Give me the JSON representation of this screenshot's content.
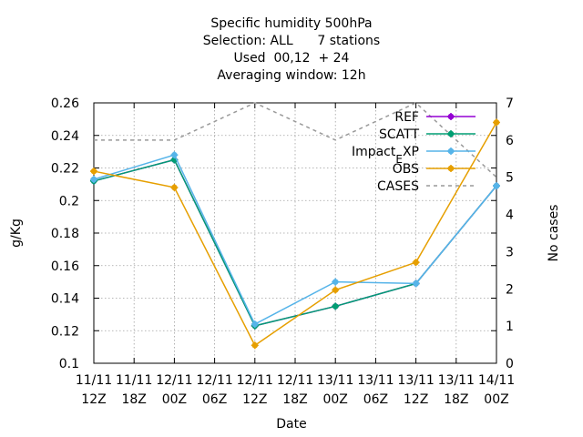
{
  "chart_data": {
    "type": "line",
    "title_lines": [
      "Specific humidity 500hPa",
      "Selection: ALL      7 stations",
      "Used  00,12  + 24",
      "Averaging window: 12h"
    ],
    "xlabel": "Date",
    "ylabel": "g/Kg",
    "y2label": "No cases",
    "x_ticks": [
      {
        "line1": "11/11",
        "line2": "12Z"
      },
      {
        "line1": "11/11",
        "line2": "18Z"
      },
      {
        "line1": "12/11",
        "line2": "00Z"
      },
      {
        "line1": "12/11",
        "line2": "06Z"
      },
      {
        "line1": "12/11",
        "line2": "12Z"
      },
      {
        "line1": "12/11",
        "line2": "18Z"
      },
      {
        "line1": "13/11",
        "line2": "00Z"
      },
      {
        "line1": "13/11",
        "line2": "06Z"
      },
      {
        "line1": "13/11",
        "line2": "12Z"
      },
      {
        "line1": "13/11",
        "line2": "18Z"
      },
      {
        "line1": "14/11",
        "line2": "00Z"
      }
    ],
    "ylim": [
      0.1,
      0.26
    ],
    "y_ticks": [
      "0.1",
      "0.12",
      "0.14",
      "0.16",
      "0.18",
      "0.2",
      "0.22",
      "0.24",
      "0.26"
    ],
    "y2lim": [
      0,
      7
    ],
    "y2_ticks": [
      "0",
      "1",
      "2",
      "3",
      "4",
      "5",
      "6",
      "7"
    ],
    "grid": true,
    "legend_position": "top-right",
    "x": [
      "11/11 12Z",
      "12/11 00Z",
      "12/11 12Z",
      "13/11 00Z",
      "13/11 12Z",
      "14/11 00Z"
    ],
    "series": [
      {
        "name": "REF",
        "axis": "left",
        "color": "#9400d3",
        "style": "line-points",
        "values": [
          0.212,
          0.225,
          0.123,
          0.135,
          0.149,
          0.209
        ]
      },
      {
        "name": "SCATT",
        "axis": "left",
        "color": "#009e73",
        "style": "line-points",
        "values": [
          0.212,
          0.225,
          0.123,
          0.135,
          0.149,
          0.209
        ]
      },
      {
        "name": "Impact_EXP",
        "label_main": "Impact",
        "label_sub": "E",
        "label_tail": "XP",
        "axis": "left",
        "color": "#56b4e9",
        "style": "line-points",
        "values": [
          0.213,
          0.228,
          0.124,
          0.15,
          0.149,
          0.209
        ]
      },
      {
        "name": "OBS",
        "axis": "left",
        "color": "#e69f00",
        "style": "line-points",
        "values": [
          0.218,
          0.208,
          0.111,
          0.145,
          0.162,
          0.248
        ]
      },
      {
        "name": "CASES",
        "axis": "right",
        "color": "#999999",
        "style": "dashed",
        "values": [
          6,
          6,
          7,
          6,
          7,
          5
        ]
      }
    ]
  }
}
